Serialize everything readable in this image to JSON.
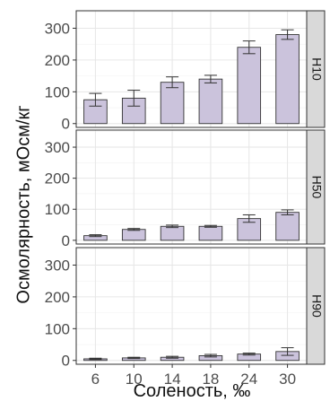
{
  "chart_data": {
    "type": "bar",
    "title": "",
    "xlabel": "Соленость, ‰",
    "ylabel": "Осмолярность, мОсм/кг",
    "categories": [
      "6",
      "10",
      "14",
      "18",
      "24",
      "30"
    ],
    "ylim": [
      -12,
      355
    ],
    "yticks": [
      0,
      100,
      200,
      300
    ],
    "grid": true,
    "bar_color": "#cbc3dc",
    "bar_stroke": "#333333",
    "strip_color": "#d9d9d9",
    "facets": [
      {
        "name": "H10",
        "values": [
          75,
          80,
          130,
          140,
          240,
          280
        ],
        "errors": [
          20,
          25,
          17,
          12,
          20,
          15
        ]
      },
      {
        "name": "H50",
        "values": [
          15,
          35,
          45,
          45,
          70,
          90
        ],
        "errors": [
          3,
          3,
          4,
          3,
          12,
          8
        ]
      },
      {
        "name": "H90",
        "values": [
          5,
          8,
          10,
          15,
          20,
          28
        ],
        "errors": [
          2,
          2,
          3,
          4,
          3,
          12
        ]
      }
    ]
  }
}
